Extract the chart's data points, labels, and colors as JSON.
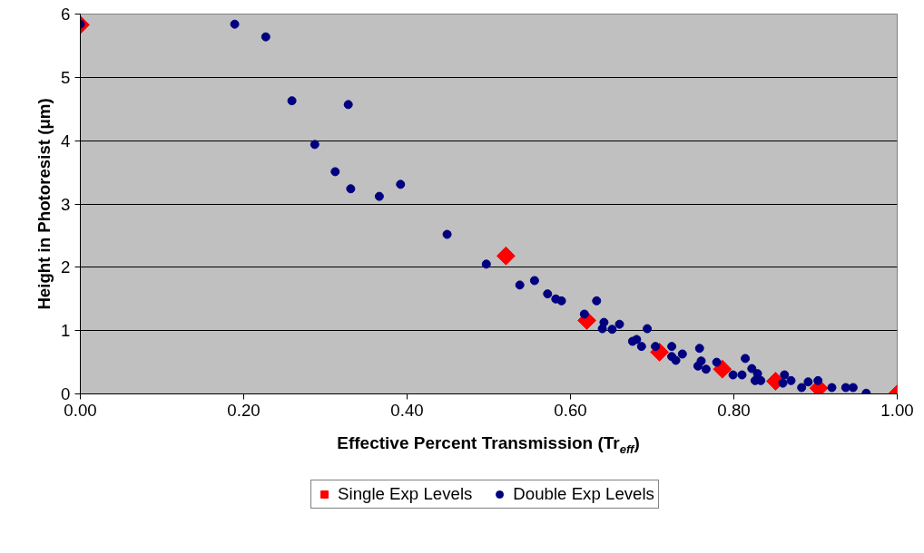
{
  "chart_data": {
    "type": "scatter",
    "xlabel": "Effective Percent Transmission (Tr$_{eff}$)",
    "ylabel": "Height in Photoresist (μm)",
    "xlim": [
      0,
      1
    ],
    "xticks": [
      {
        "value": 0,
        "label": "0.00"
      },
      {
        "value": 0.2,
        "label": "0.20"
      },
      {
        "value": 0.4,
        "label": "0.40"
      },
      {
        "value": 0.6,
        "label": "0.60"
      },
      {
        "value": 0.8,
        "label": "0.80"
      },
      {
        "value": 1,
        "label": "1.00"
      }
    ],
    "ylim": [
      0,
      6
    ],
    "yticks": [
      0,
      1,
      2,
      3,
      4,
      5,
      6
    ],
    "grid": "y",
    "legend": "bottom",
    "series": [
      {
        "name": "Single Exp Levels",
        "color": "#ff0000",
        "marker": "diamond",
        "x": [
          0,
          0.521,
          0.62,
          0.709,
          0.786,
          0.851,
          0.904,
          1.0
        ],
        "values": [
          5.83,
          2.18,
          1.16,
          0.66,
          0.39,
          0.2,
          0.09,
          0
        ]
      },
      {
        "name": "Double Exp Levels",
        "color": "#000080",
        "marker": "circle",
        "x": [
          0,
          0.189,
          0.227,
          0.259,
          0.328,
          0.287,
          0.312,
          0.331,
          0.366,
          0.392,
          0.449,
          0.497,
          0.538,
          0.556,
          0.572,
          0.582,
          0.589,
          0.632,
          0.617,
          0.641,
          0.639,
          0.651,
          0.66,
          0.694,
          0.676,
          0.681,
          0.687,
          0.704,
          0.724,
          0.724,
          0.729,
          0.737,
          0.758,
          0.76,
          0.756,
          0.766,
          0.779,
          0.799,
          0.81,
          0.814,
          0.822,
          0.829,
          0.826,
          0.833,
          0.862,
          0.86,
          0.87,
          0.883,
          0.891,
          0.903,
          0.92,
          0.937,
          0.946,
          0.962
        ],
        "values": [
          5.84,
          5.84,
          5.64,
          4.63,
          4.57,
          3.94,
          3.51,
          3.24,
          3.12,
          3.31,
          2.52,
          2.05,
          1.72,
          1.79,
          1.58,
          1.5,
          1.47,
          1.47,
          1.26,
          1.13,
          1.03,
          1.02,
          1.1,
          1.03,
          0.83,
          0.86,
          0.75,
          0.75,
          0.75,
          0.59,
          0.53,
          0.63,
          0.72,
          0.52,
          0.44,
          0.39,
          0.5,
          0.3,
          0.3,
          0.56,
          0.4,
          0.32,
          0.21,
          0.21,
          0.3,
          0.17,
          0.21,
          0.1,
          0.19,
          0.21,
          0.1,
          0.1,
          0.1,
          0.01
        ]
      }
    ]
  }
}
